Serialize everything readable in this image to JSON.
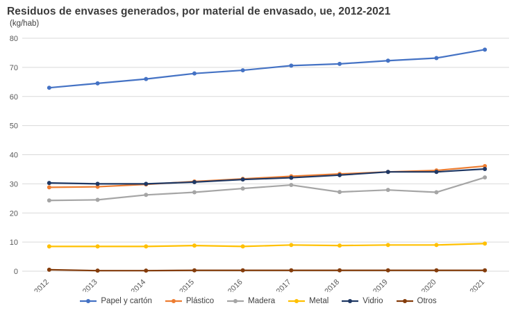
{
  "title": "Residuos de envases generados, por material de envasado, ue, 2012-2021",
  "subtitle": "(kg/hab)",
  "chart_data": {
    "type": "line",
    "title": "Residuos de envases generados, por material de envasado, ue, 2012-2021",
    "unit_label": "(kg/hab)",
    "categories": [
      "2012",
      "2013",
      "2014",
      "2015",
      "2016",
      "2017",
      "2018",
      "2019",
      "2020",
      "2021"
    ],
    "series": [
      {
        "name": "Papel y cartón",
        "color": "#4472C4",
        "values": [
          63,
          64.5,
          66,
          67.9,
          69,
          70.6,
          71.2,
          72.3,
          73.2,
          76.1
        ]
      },
      {
        "name": "Plástico",
        "color": "#ED7D31",
        "values": [
          28.8,
          29,
          29.8,
          30.8,
          31.7,
          32.6,
          33.4,
          34.1,
          34.6,
          36.1
        ]
      },
      {
        "name": "Madera",
        "color": "#A5A5A5",
        "values": [
          24.3,
          24.5,
          26.2,
          27.1,
          28.4,
          29.6,
          27.2,
          27.9,
          27.1,
          32.2
        ]
      },
      {
        "name": "Metal",
        "color": "#FFC000",
        "values": [
          8.5,
          8.5,
          8.5,
          8.8,
          8.5,
          9,
          8.8,
          9,
          9,
          9.5
        ]
      },
      {
        "name": "Vidrio",
        "color": "#1F3864",
        "values": [
          30.3,
          30,
          30,
          30.6,
          31.5,
          32.1,
          33,
          34.1,
          34.1,
          35.1
        ]
      },
      {
        "name": "Otros",
        "color": "#843C0B",
        "values": [
          0.5,
          0.2,
          0.2,
          0.3,
          0.3,
          0.3,
          0.3,
          0.3,
          0.3,
          0.3
        ]
      }
    ],
    "xlabel": "",
    "ylabel": "",
    "ylim": [
      0,
      80
    ],
    "ytick_step": 10,
    "grid": true,
    "grid_color": "#D9D9D9",
    "legend_position": "bottom"
  }
}
